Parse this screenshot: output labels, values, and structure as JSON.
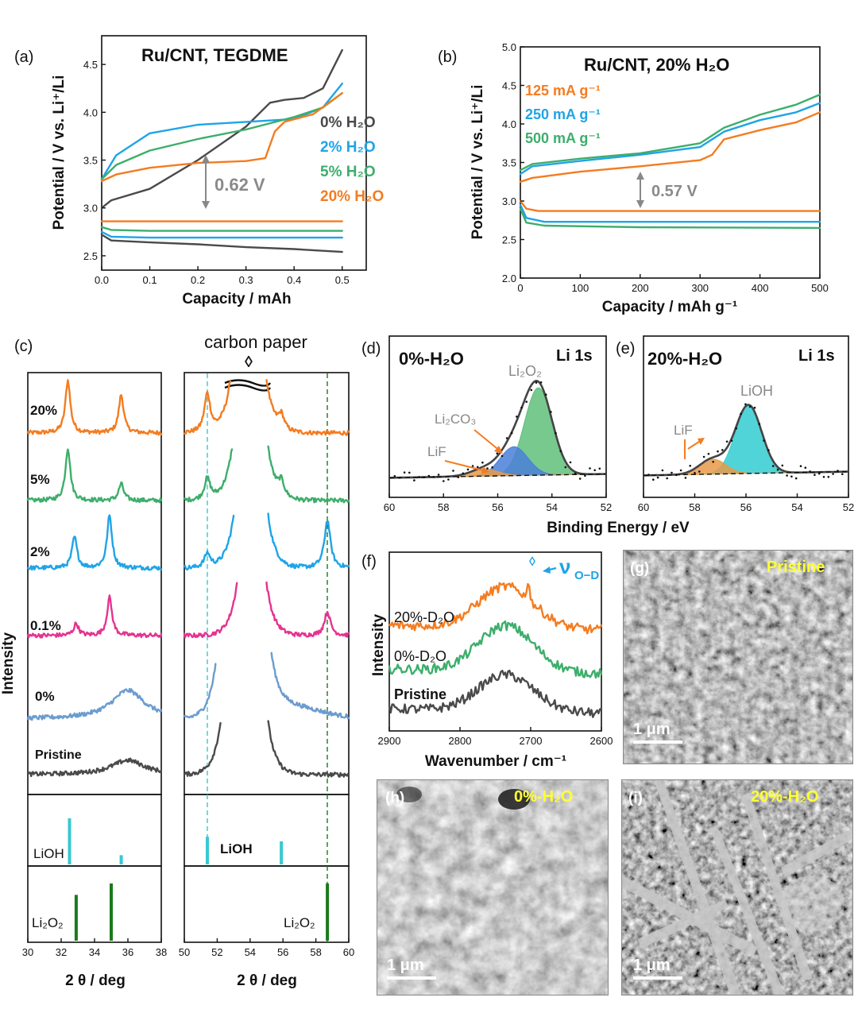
{
  "colors": {
    "gray": "#4a4a4a",
    "orange": "#f47c20",
    "blue": "#1fa4e6",
    "green": "#3dae6b",
    "magenta": "#e5338f",
    "lightblue": "#6b9ccf",
    "cyan": "#38c8d2",
    "darkgreen": "#1b7a1b",
    "fitGreen": "#5fbf7a",
    "fitBlue": "#4a7fd8",
    "fitOrange": "#e89a4a",
    "fitCyan": "#33cdd0"
  },
  "chart_data": [
    {
      "id": "a",
      "panel_label": "(a)",
      "type": "line",
      "title": "Ru/CNT, TEGDME",
      "xlabel": "Capacity / mAh",
      "ylabel": "Potential / V vs. Li⁺/Li",
      "xlim": [
        0,
        0.55
      ],
      "ylim": [
        2.35,
        4.8
      ],
      "xticks": [
        "0.0",
        "0.1",
        "0.2",
        "0.3",
        "0.4",
        "0.5"
      ],
      "yticks": [
        "2.5",
        "3.0",
        "3.5",
        "4.0",
        "4.5"
      ],
      "annotation": "0.62 V",
      "series": [
        {
          "name": "0% H₂O",
          "color": "gray",
          "discharge": [
            [
              0,
              2.72
            ],
            [
              0.02,
              2.66
            ],
            [
              0.1,
              2.64
            ],
            [
              0.2,
              2.62
            ],
            [
              0.3,
              2.59
            ],
            [
              0.4,
              2.57
            ],
            [
              0.5,
              2.54
            ]
          ],
          "charge": [
            [
              0,
              3.0
            ],
            [
              0.02,
              3.08
            ],
            [
              0.1,
              3.2
            ],
            [
              0.2,
              3.5
            ],
            [
              0.3,
              3.85
            ],
            [
              0.35,
              4.1
            ],
            [
              0.38,
              4.13
            ],
            [
              0.42,
              4.15
            ],
            [
              0.46,
              4.25
            ],
            [
              0.5,
              4.65
            ]
          ]
        },
        {
          "name": "2% H₂O",
          "color": "blue",
          "discharge": [
            [
              0,
              2.75
            ],
            [
              0.02,
              2.7
            ],
            [
              0.1,
              2.69
            ],
            [
              0.3,
              2.69
            ],
            [
              0.5,
              2.69
            ]
          ],
          "charge": [
            [
              0,
              3.3
            ],
            [
              0.03,
              3.55
            ],
            [
              0.1,
              3.78
            ],
            [
              0.2,
              3.87
            ],
            [
              0.3,
              3.9
            ],
            [
              0.4,
              3.93
            ],
            [
              0.46,
              4.05
            ],
            [
              0.5,
              4.3
            ]
          ]
        },
        {
          "name": "5% H₂O",
          "color": "green",
          "discharge": [
            [
              0,
              2.8
            ],
            [
              0.02,
              2.77
            ],
            [
              0.1,
              2.76
            ],
            [
              0.3,
              2.76
            ],
            [
              0.5,
              2.76
            ]
          ],
          "charge": [
            [
              0,
              3.3
            ],
            [
              0.03,
              3.45
            ],
            [
              0.1,
              3.6
            ],
            [
              0.2,
              3.72
            ],
            [
              0.3,
              3.82
            ],
            [
              0.4,
              3.95
            ],
            [
              0.46,
              4.05
            ],
            [
              0.5,
              4.2
            ]
          ]
        },
        {
          "name": "20% H₂O",
          "color": "orange",
          "discharge": [
            [
              0,
              2.86
            ],
            [
              0.01,
              2.86
            ],
            [
              0.2,
              2.86
            ],
            [
              0.4,
              2.86
            ],
            [
              0.5,
              2.86
            ]
          ],
          "charge": [
            [
              0,
              3.28
            ],
            [
              0.03,
              3.35
            ],
            [
              0.1,
              3.42
            ],
            [
              0.2,
              3.47
            ],
            [
              0.3,
              3.49
            ],
            [
              0.34,
              3.52
            ],
            [
              0.36,
              3.8
            ],
            [
              0.38,
              3.9
            ],
            [
              0.44,
              3.98
            ],
            [
              0.5,
              4.2
            ]
          ]
        }
      ]
    },
    {
      "id": "b",
      "panel_label": "(b)",
      "type": "line",
      "title": "Ru/CNT, 20% H₂O",
      "xlabel": "Capacity / mAh g⁻¹",
      "ylabel": "Potential / V vs. Li⁺/Li",
      "xlim": [
        0,
        500
      ],
      "ylim": [
        2.0,
        5.0
      ],
      "xticks": [
        "0",
        "100",
        "200",
        "300",
        "400",
        "500"
      ],
      "yticks": [
        "2.0",
        "2.5",
        "3.0",
        "3.5",
        "4.0",
        "4.5",
        "5.0"
      ],
      "annotation": "0.57 V",
      "series": [
        {
          "name": "125 mA g⁻¹",
          "color": "orange",
          "discharge": [
            [
              0,
              3.0
            ],
            [
              10,
              2.9
            ],
            [
              30,
              2.87
            ],
            [
              200,
              2.87
            ],
            [
              500,
              2.87
            ]
          ],
          "charge": [
            [
              0,
              3.25
            ],
            [
              20,
              3.3
            ],
            [
              100,
              3.38
            ],
            [
              200,
              3.45
            ],
            [
              300,
              3.53
            ],
            [
              320,
              3.6
            ],
            [
              340,
              3.8
            ],
            [
              400,
              3.92
            ],
            [
              460,
              4.02
            ],
            [
              500,
              4.15
            ]
          ]
        },
        {
          "name": "250 mA g⁻¹",
          "color": "blue",
          "discharge": [
            [
              0,
              2.95
            ],
            [
              10,
              2.78
            ],
            [
              40,
              2.73
            ],
            [
              200,
              2.73
            ],
            [
              500,
              2.73
            ]
          ],
          "charge": [
            [
              0,
              3.35
            ],
            [
              20,
              3.45
            ],
            [
              100,
              3.52
            ],
            [
              200,
              3.6
            ],
            [
              300,
              3.7
            ],
            [
              340,
              3.9
            ],
            [
              400,
              4.05
            ],
            [
              460,
              4.15
            ],
            [
              500,
              4.27
            ]
          ]
        },
        {
          "name": "500 mA g⁻¹",
          "color": "green",
          "discharge": [
            [
              0,
              2.9
            ],
            [
              10,
              2.72
            ],
            [
              40,
              2.68
            ],
            [
              200,
              2.66
            ],
            [
              500,
              2.65
            ]
          ],
          "charge": [
            [
              0,
              3.4
            ],
            [
              20,
              3.48
            ],
            [
              100,
              3.55
            ],
            [
              200,
              3.62
            ],
            [
              300,
              3.75
            ],
            [
              340,
              3.95
            ],
            [
              400,
              4.12
            ],
            [
              460,
              4.25
            ],
            [
              500,
              4.38
            ]
          ]
        }
      ]
    },
    {
      "id": "c",
      "panel_label": "(c)",
      "type": "line",
      "title": "carbon paper",
      "marker_symbol": "◊",
      "xlabel": "2 θ / deg",
      "ylabel": "Intensity",
      "left_xlim": [
        30,
        38
      ],
      "right_xlim": [
        50,
        60
      ],
      "left_xticks": [
        "30",
        "32",
        "34",
        "36",
        "38"
      ],
      "right_xticks": [
        "50",
        "52",
        "54",
        "56",
        "58",
        "60"
      ],
      "traces": [
        {
          "name": "20%",
          "color": "orange",
          "left_peaks": [
            [
              32.4,
              2.2
            ],
            [
              35.6,
              1.6
            ]
          ],
          "right_peaks": [
            [
              51.4,
              1.6
            ],
            [
              55.9,
              0.6
            ]
          ]
        },
        {
          "name": "5%",
          "color": "green",
          "left_peaks": [
            [
              32.4,
              2.2
            ],
            [
              35.6,
              0.7
            ]
          ],
          "right_peaks": [
            [
              51.4,
              0.9
            ],
            [
              55.9,
              0.6
            ]
          ]
        },
        {
          "name": "2%",
          "color": "blue",
          "left_peaks": [
            [
              32.8,
              1.3
            ],
            [
              34.9,
              2.2
            ]
          ],
          "right_peaks": [
            [
              51.4,
              0.6
            ],
            [
              58.7,
              2.0
            ]
          ]
        },
        {
          "name": "0.1%",
          "color": "magenta",
          "left_peaks": [
            [
              32.9,
              0.5
            ],
            [
              34.9,
              1.6
            ]
          ],
          "right_peaks": [
            [
              58.7,
              1.0
            ]
          ]
        },
        {
          "name": "0%",
          "color": "lightblue",
          "left_peaks": [
            [
              36.0,
              1.2
            ]
          ],
          "right_peaks": []
        },
        {
          "name": "Pristine",
          "color": "gray",
          "left_peaks": [
            [
              36.0,
              0.6
            ]
          ],
          "right_peaks": []
        }
      ],
      "reference": [
        {
          "name": "LiOH",
          "color": "cyan",
          "left_sticks": [
            [
              32.5,
              1.0
            ],
            [
              35.6,
              0.2
            ]
          ],
          "right_sticks": [
            [
              51.4,
              0.6
            ],
            [
              55.9,
              0.5
            ]
          ]
        },
        {
          "name": "Li₂O₂",
          "color": "darkgreen",
          "left_sticks": [
            [
              32.9,
              0.8
            ],
            [
              35.0,
              1.0
            ]
          ],
          "right_sticks": [
            [
              58.7,
              1.0
            ]
          ]
        }
      ]
    },
    {
      "id": "d",
      "panel_label": "(d)",
      "type": "line",
      "title": "0%-H₂O",
      "corner_label": "Li 1s",
      "xlabel": "Binding Energy / eV",
      "xlim": [
        60,
        52
      ],
      "xticks": [
        "60",
        "58",
        "56",
        "54",
        "52"
      ],
      "components": [
        {
          "name": "Li₂O₂",
          "center": 54.5,
          "height": 1.0,
          "fill": "fitGreen"
        },
        {
          "name": "Li₂CO₃",
          "center": 55.4,
          "height": 0.33,
          "fill": "fitBlue"
        },
        {
          "name": "LiF",
          "center": 56.5,
          "height": 0.08,
          "fill": "fitOrange"
        }
      ]
    },
    {
      "id": "e",
      "panel_label": "(e)",
      "type": "line",
      "title": "20%-H₂O",
      "corner_label": "Li 1s",
      "xlabel": "Binding Energy / eV",
      "xlim": [
        60,
        52
      ],
      "xticks": [
        "60",
        "58",
        "56",
        "54",
        "52"
      ],
      "components": [
        {
          "name": "LiOH",
          "center": 55.9,
          "height": 1.0,
          "fill": "fitCyan"
        },
        {
          "name": "LiF",
          "center": 57.3,
          "height": 0.22,
          "fill": "fitOrange"
        }
      ]
    },
    {
      "id": "f",
      "panel_label": "(f)",
      "type": "line",
      "annotation": "ν",
      "annotation_sub": "O−D",
      "marker_symbol": "◊",
      "xlabel": "Wavenumber / cm⁻¹",
      "ylabel": "Intensity",
      "xlim": [
        2900,
        2600
      ],
      "xticks": [
        "2900",
        "2800",
        "2700",
        "2600"
      ],
      "series": [
        {
          "name": "20%-D₂O",
          "color": "orange"
        },
        {
          "name": "0%-D₂O",
          "color": "green"
        },
        {
          "name": "Pristine",
          "color": "gray"
        }
      ]
    }
  ],
  "sem": [
    {
      "id": "g",
      "panel_label": "(g)",
      "label": "Pristine",
      "scale": "1 μm"
    },
    {
      "id": "h",
      "panel_label": "(h)",
      "label": "0%-H₂O",
      "scale": "1 μm"
    },
    {
      "id": "i",
      "panel_label": "(i)",
      "label": "20%-H₂O",
      "scale": "1 μm"
    }
  ],
  "text": {
    "a_leg0": "0% H₂O",
    "a_leg1": "2% H₂O",
    "a_leg2": "5% H₂O",
    "a_leg3": "20% H₂O",
    "b_leg0": "125 mA g⁻¹",
    "b_leg1": "250 mA g⁻¹",
    "b_leg2": "500 mA g⁻¹",
    "d_li2o2": "Li₂O₂",
    "d_li2co3": "Li₂CO₃",
    "d_lif": "LiF",
    "e_lioh": "LiOH",
    "e_lif": "LiF",
    "c_lioh_left": "LiOH",
    "c_lioh_right": "LiOH",
    "c_li2o2_left": "Li₂O₂",
    "c_li2o2_right": "Li₂O₂"
  }
}
